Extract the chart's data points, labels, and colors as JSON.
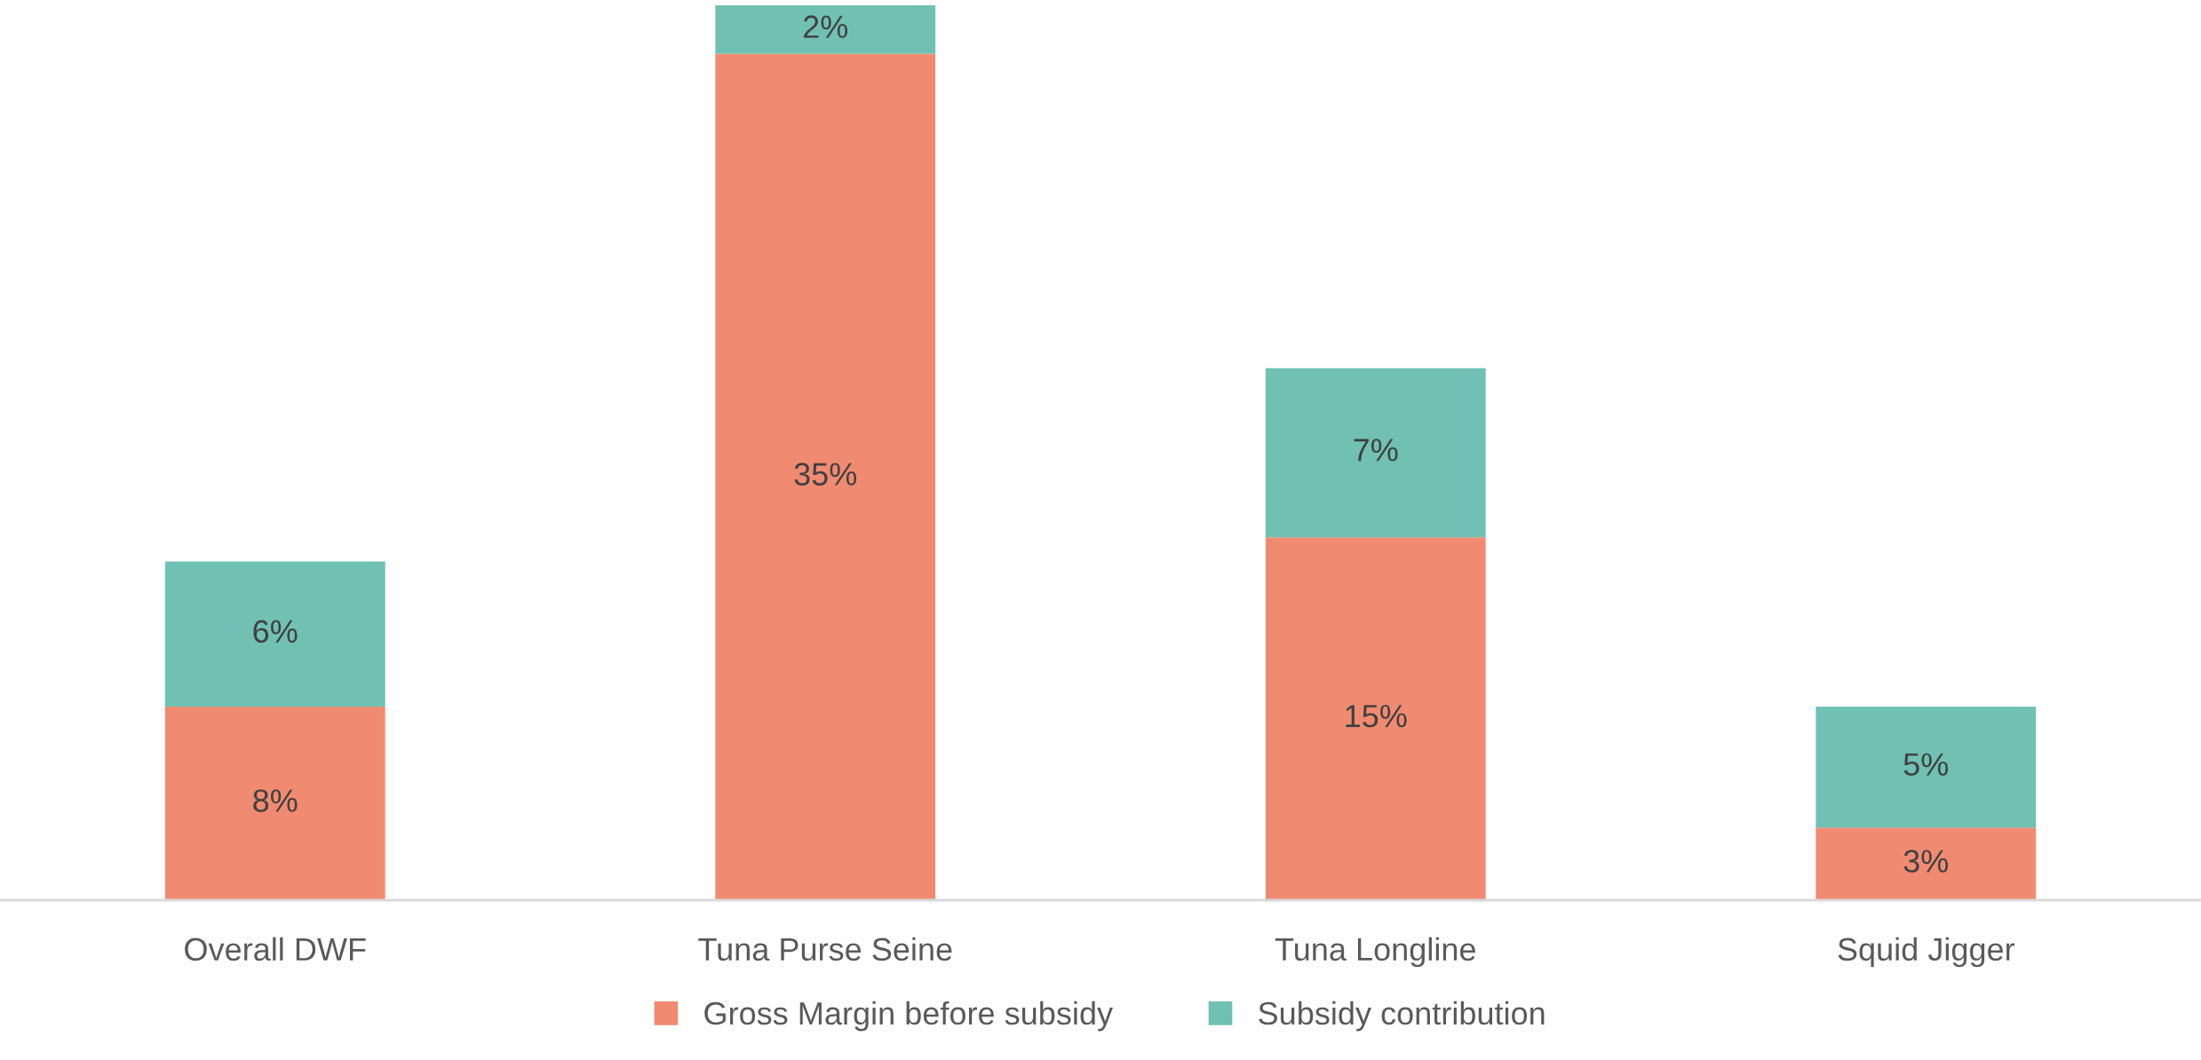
{
  "chart_data": {
    "type": "bar",
    "stacked": true,
    "categories": [
      "Overall DWF",
      "Tuna Purse Seine",
      "Tuna Longline",
      "Squid Jigger"
    ],
    "series": [
      {
        "name": "Gross Margin before subsidy",
        "color": "#f08b72",
        "values": [
          8,
          35,
          15,
          3
        ],
        "value_labels": [
          "8%",
          "35%",
          "15%",
          "3%"
        ]
      },
      {
        "name": "Subsidy contribution",
        "color": "#70c1b3",
        "values": [
          6,
          2,
          7,
          5
        ],
        "value_labels": [
          "6%",
          "2%",
          "7%",
          "5%"
        ]
      }
    ],
    "legend": "bottom",
    "grid": false
  }
}
